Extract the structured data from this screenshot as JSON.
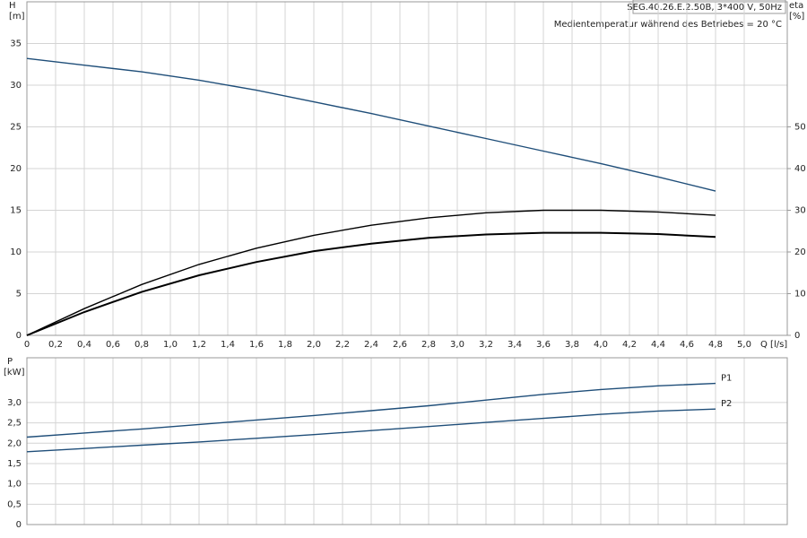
{
  "chart_data": [
    {
      "type": "line",
      "title": "SEG.40.26.E.2.50B, 3*400 V, 50Hz",
      "subtitle": "Medientemperatur während des Betriebes = 20 °C",
      "y_label": "H",
      "y_unit": "[m]",
      "y2_label": "eta",
      "y2_unit": "[%]",
      "x_label": "Q [l/s]",
      "xlim": [
        0,
        5.3
      ],
      "ylim": [
        0,
        40
      ],
      "y2lim": [
        0,
        80
      ],
      "grid": true,
      "xticks": [
        0,
        {
          "value": 0.2,
          "label": "0,2"
        },
        {
          "value": 0.4,
          "label": "0,4"
        },
        {
          "value": 0.6,
          "label": "0,6"
        },
        {
          "value": 0.8,
          "label": "0,8"
        },
        {
          "value": 1.0,
          "label": "1,0"
        },
        {
          "value": 1.2,
          "label": "1,2"
        },
        {
          "value": 1.4,
          "label": "1,4"
        },
        {
          "value": 1.6,
          "label": "1,6"
        },
        {
          "value": 1.8,
          "label": "1,8"
        },
        {
          "value": 2.0,
          "label": "2,0"
        },
        {
          "value": 2.2,
          "label": "2,2"
        },
        {
          "value": 2.4,
          "label": "2,4"
        },
        {
          "value": 2.6,
          "label": "2,6"
        },
        {
          "value": 2.8,
          "label": "2,8"
        },
        {
          "value": 3.0,
          "label": "3,0"
        },
        {
          "value": 3.2,
          "label": "3,2"
        },
        {
          "value": 3.4,
          "label": "3,4"
        },
        {
          "value": 3.6,
          "label": "3,6"
        },
        {
          "value": 3.8,
          "label": "3,8"
        },
        {
          "value": 4.0,
          "label": "4,0"
        },
        {
          "value": 4.2,
          "label": "4,2"
        },
        {
          "value": 4.4,
          "label": "4,4"
        },
        {
          "value": 4.6,
          "label": "4,6"
        },
        {
          "value": 4.8,
          "label": "4,8"
        },
        {
          "value": 5.0,
          "label": "5,0"
        }
      ],
      "yticks": [
        0,
        5,
        10,
        15,
        20,
        25,
        30,
        35
      ],
      "y2ticks": [
        0,
        10,
        20,
        30,
        40,
        50
      ],
      "x": [
        0,
        0.4,
        0.8,
        1.2,
        1.6,
        2.0,
        2.4,
        2.8,
        3.2,
        3.6,
        4.0,
        4.4,
        4.8
      ],
      "series": [
        {
          "color": "#1f4e79",
          "values": [
            33.2,
            32.4,
            31.6,
            30.6,
            29.4,
            28.0,
            26.6,
            25.1,
            23.6,
            22.1,
            20.6,
            19.0,
            17.3
          ]
        },
        {
          "color": "#000000",
          "axis": "y2",
          "values": [
            0,
            6.4,
            12.2,
            17.0,
            20.9,
            24.0,
            26.4,
            28.2,
            29.4,
            30.0,
            30.0,
            29.6,
            28.8
          ]
        },
        {
          "color": "#000000",
          "axis": "y2",
          "values": [
            0,
            5.6,
            10.4,
            14.4,
            17.6,
            20.2,
            22.0,
            23.4,
            24.2,
            24.6,
            24.6,
            24.3,
            23.6
          ]
        }
      ]
    },
    {
      "type": "line",
      "y_label": "P",
      "y_unit": "[kW]",
      "xlim": [
        0,
        5.3
      ],
      "ylim": [
        0,
        4.1
      ],
      "grid": true,
      "xtick_labels": false,
      "xticks": [
        0,
        0.2,
        0.4,
        0.6,
        0.8,
        1.0,
        1.2,
        1.4,
        1.6,
        1.8,
        2.0,
        2.2,
        2.4,
        2.6,
        2.8,
        3.0,
        3.2,
        3.4,
        3.6,
        3.8,
        4.0,
        4.2,
        4.4,
        4.6,
        4.8,
        5.0
      ],
      "yticks": [
        0,
        {
          "value": 0.5,
          "label": "0,5"
        },
        {
          "value": 1.0,
          "label": "1,0"
        },
        {
          "value": 1.5,
          "label": "1,5"
        },
        {
          "value": 2.0,
          "label": "2,0"
        },
        {
          "value": 2.5,
          "label": "2,5"
        },
        {
          "value": 3.0,
          "label": "3,0"
        }
      ],
      "x": [
        0,
        0.4,
        0.8,
        1.2,
        1.6,
        2.0,
        2.4,
        2.8,
        3.2,
        3.6,
        4.0,
        4.4,
        4.8
      ],
      "series": [
        {
          "name": "P1",
          "color": "#1f4e79",
          "values": [
            2.15,
            2.25,
            2.35,
            2.46,
            2.57,
            2.68,
            2.8,
            2.92,
            3.06,
            3.2,
            3.32,
            3.41,
            3.47
          ]
        },
        {
          "name": "P2",
          "color": "#1f4e79",
          "values": [
            1.79,
            1.87,
            1.95,
            2.03,
            2.12,
            2.21,
            2.31,
            2.41,
            2.51,
            2.61,
            2.71,
            2.79,
            2.84
          ]
        }
      ]
    }
  ]
}
